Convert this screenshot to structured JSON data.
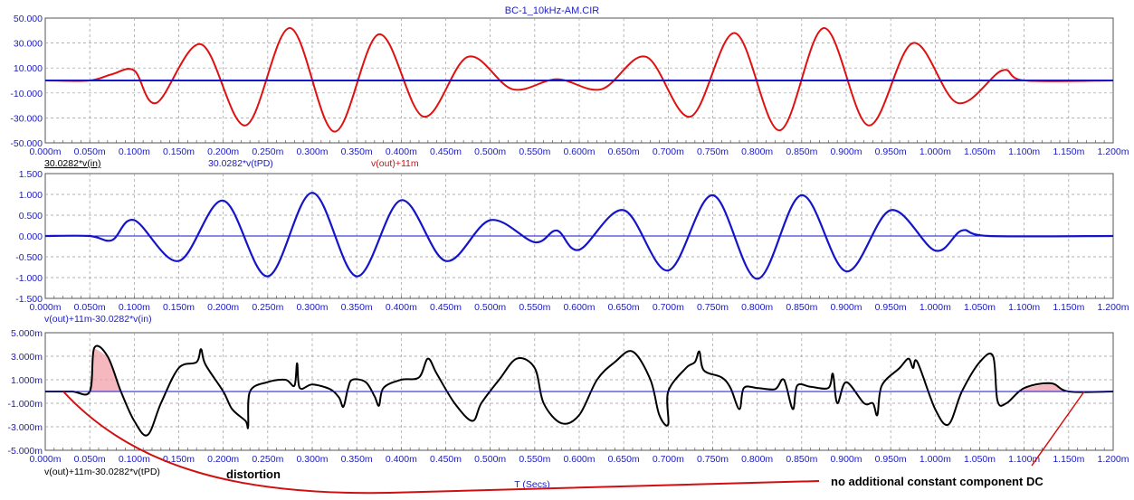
{
  "window": {
    "title": "BC-1_10kHz-AM.CIR"
  },
  "x_axis_label": "T (Secs)",
  "colors": {
    "red": "#e01010",
    "blue": "#1414c8",
    "black": "#000000",
    "pink": "#f0a0a8",
    "grid": "#999999",
    "text": "#1b1bc0"
  },
  "chart_data": [
    {
      "type": "line",
      "xlim": [
        0,
        1.2
      ],
      "ylim": [
        -50,
        50
      ],
      "x_tick_labels": [
        "0.000m",
        "0.050m",
        "0.100m",
        "0.150m",
        "0.200m",
        "0.250m",
        "0.300m",
        "0.350m",
        "0.400m",
        "0.450m",
        "0.500m",
        "0.550m",
        "0.600m",
        "0.650m",
        "0.700m",
        "0.750m",
        "0.800m",
        "0.850m",
        "0.900m",
        "0.950m",
        "1.000m",
        "1.050m",
        "1.100m",
        "1.150m",
        "1.200m"
      ],
      "y_tick_labels": [
        "50.000",
        "30.000",
        "10.000",
        "-10.000",
        "-30.000",
        "-50.000"
      ],
      "legend": [
        "30.0282*v(in)",
        "30.0282*v(tPD)",
        "v(out)+11m"
      ],
      "series": [
        {
          "name": "v(out)+11m",
          "color": "red",
          "points": [
            [
              0,
              0
            ],
            [
              0.05,
              0
            ],
            [
              0.075,
              5
            ],
            [
              0.1,
              8
            ],
            [
              0.125,
              -18
            ],
            [
              0.175,
              29
            ],
            [
              0.225,
              -36
            ],
            [
              0.275,
              42
            ],
            [
              0.325,
              -41
            ],
            [
              0.375,
              37
            ],
            [
              0.425,
              -29
            ],
            [
              0.475,
              19
            ],
            [
              0.525,
              -7
            ],
            [
              0.575,
              1
            ],
            [
              0.625,
              -7
            ],
            [
              0.675,
              19
            ],
            [
              0.725,
              -29
            ],
            [
              0.775,
              38
            ],
            [
              0.825,
              -40
            ],
            [
              0.875,
              42
            ],
            [
              0.925,
              -36
            ],
            [
              0.975,
              30
            ],
            [
              1.025,
              -18
            ],
            [
              1.075,
              8
            ],
            [
              1.1,
              0
            ],
            [
              1.2,
              0
            ]
          ]
        },
        {
          "name": "30.0282*v(tPD)",
          "color": "blue",
          "points": [
            [
              0,
              0
            ],
            [
              1.2,
              0
            ]
          ]
        }
      ]
    },
    {
      "type": "line",
      "xlim": [
        0,
        1.2
      ],
      "ylim": [
        -1.5,
        1.5
      ],
      "x_tick_labels": [
        "0.000m",
        "0.050m",
        "0.100m",
        "0.150m",
        "0.200m",
        "0.250m",
        "0.300m",
        "0.350m",
        "0.400m",
        "0.450m",
        "0.500m",
        "0.550m",
        "0.600m",
        "0.650m",
        "0.700m",
        "0.750m",
        "0.800m",
        "0.850m",
        "0.900m",
        "0.950m",
        "1.000m",
        "1.050m",
        "1.100m",
        "1.150m",
        "1.200m"
      ],
      "y_tick_labels": [
        "1.500",
        "1.000",
        "0.500",
        "0.000",
        "-0.500",
        "-1.000",
        "-1.500"
      ],
      "legend": [
        "v(out)+11m-30.0282*v(in)"
      ],
      "series": [
        {
          "name": "v(out)+11m-30.0282*v(in)",
          "color": "blue",
          "points": [
            [
              0,
              0
            ],
            [
              0.05,
              0
            ],
            [
              0.075,
              -0.1
            ],
            [
              0.1,
              0.38
            ],
            [
              0.15,
              -0.6
            ],
            [
              0.2,
              0.85
            ],
            [
              0.25,
              -0.97
            ],
            [
              0.3,
              1.04
            ],
            [
              0.35,
              -0.97
            ],
            [
              0.4,
              0.86
            ],
            [
              0.45,
              -0.6
            ],
            [
              0.5,
              0.38
            ],
            [
              0.55,
              -0.15
            ],
            [
              0.575,
              0.13
            ],
            [
              0.6,
              -0.33
            ],
            [
              0.65,
              0.62
            ],
            [
              0.7,
              -0.83
            ],
            [
              0.75,
              0.98
            ],
            [
              0.8,
              -1.03
            ],
            [
              0.85,
              0.98
            ],
            [
              0.9,
              -0.85
            ],
            [
              0.95,
              0.62
            ],
            [
              1.0,
              -0.35
            ],
            [
              1.03,
              0.13
            ],
            [
              1.06,
              0
            ],
            [
              1.2,
              0
            ]
          ]
        }
      ]
    },
    {
      "type": "line",
      "xlim": [
        0,
        1.2
      ],
      "ylim": [
        -5,
        5
      ],
      "x_tick_labels": [
        "0.000m",
        "0.050m",
        "0.100m",
        "0.150m",
        "0.200m",
        "0.250m",
        "0.300m",
        "0.350m",
        "0.400m",
        "0.450m",
        "0.500m",
        "0.550m",
        "0.600m",
        "0.650m",
        "0.700m",
        "0.750m",
        "0.800m",
        "0.850m",
        "0.900m",
        "0.950m",
        "1.000m",
        "1.050m",
        "1.100m",
        "1.150m",
        "1.200m"
      ],
      "y_tick_labels": [
        "5.000m",
        "3.000m",
        "1.000m",
        "-1.000m",
        "-3.000m",
        "-5.000m"
      ],
      "legend": [
        "v(out)+11m-30.0282*v(tPD)"
      ],
      "series": [
        {
          "name": "v(out)+11m-30.0282*v(tPD)",
          "color": "black",
          "points": [
            [
              0,
              0
            ],
            [
              0.03,
              0
            ],
            [
              0.05,
              0
            ],
            [
              0.055,
              3.7
            ],
            [
              0.07,
              3
            ],
            [
              0.085,
              0
            ],
            [
              0.1,
              -2.5
            ],
            [
              0.115,
              -3.7
            ],
            [
              0.13,
              -1
            ],
            [
              0.15,
              2
            ],
            [
              0.17,
              2.5
            ],
            [
              0.175,
              3.6
            ],
            [
              0.18,
              2.3
            ],
            [
              0.2,
              0
            ],
            [
              0.21,
              -1.5
            ],
            [
              0.225,
              -2.5
            ],
            [
              0.228,
              -3
            ],
            [
              0.23,
              0
            ],
            [
              0.25,
              0.8
            ],
            [
              0.27,
              1
            ],
            [
              0.28,
              0.5
            ],
            [
              0.283,
              2.4
            ],
            [
              0.286,
              0.3
            ],
            [
              0.3,
              0.6
            ],
            [
              0.32,
              0.2
            ],
            [
              0.33,
              -0.5
            ],
            [
              0.335,
              -1.3
            ],
            [
              0.34,
              0.2
            ],
            [
              0.345,
              1
            ],
            [
              0.36,
              0.8
            ],
            [
              0.37,
              -0.4
            ],
            [
              0.375,
              -1.2
            ],
            [
              0.38,
              0.3
            ],
            [
              0.4,
              1
            ],
            [
              0.42,
              1.2
            ],
            [
              0.43,
              2.8
            ],
            [
              0.44,
              1.5
            ],
            [
              0.46,
              -1
            ],
            [
              0.48,
              -2.5
            ],
            [
              0.49,
              -1
            ],
            [
              0.51,
              1
            ],
            [
              0.53,
              2.8
            ],
            [
              0.55,
              2
            ],
            [
              0.56,
              -1
            ],
            [
              0.58,
              -2.7
            ],
            [
              0.6,
              -2
            ],
            [
              0.62,
              1
            ],
            [
              0.64,
              2.5
            ],
            [
              0.66,
              3.4
            ],
            [
              0.68,
              1
            ],
            [
              0.69,
              -2
            ],
            [
              0.7,
              -2.8
            ],
            [
              0.7,
              0
            ],
            [
              0.72,
              2
            ],
            [
              0.73,
              2.5
            ],
            [
              0.735,
              3.4
            ],
            [
              0.74,
              1.8
            ],
            [
              0.76,
              1.2
            ],
            [
              0.77,
              0.3
            ],
            [
              0.78,
              -1.5
            ],
            [
              0.785,
              0.3
            ],
            [
              0.8,
              0.3
            ],
            [
              0.82,
              0.2
            ],
            [
              0.83,
              1
            ],
            [
              0.84,
              -1.5
            ],
            [
              0.845,
              0.5
            ],
            [
              0.86,
              0.4
            ],
            [
              0.88,
              0.3
            ],
            [
              0.885,
              1.5
            ],
            [
              0.89,
              -1
            ],
            [
              0.9,
              0.8
            ],
            [
              0.92,
              -1
            ],
            [
              0.93,
              -1
            ],
            [
              0.935,
              -2
            ],
            [
              0.94,
              0.5
            ],
            [
              0.96,
              2
            ],
            [
              0.97,
              2.8
            ],
            [
              0.975,
              2
            ],
            [
              0.98,
              2.5
            ],
            [
              1.0,
              -1.5
            ],
            [
              1.015,
              -2.8
            ],
            [
              1.03,
              0
            ],
            [
              1.05,
              2.5
            ],
            [
              1.065,
              3
            ],
            [
              1.07,
              -0.8
            ],
            [
              1.08,
              -1
            ],
            [
              1.1,
              0.3
            ],
            [
              1.13,
              0.7
            ],
            [
              1.15,
              0
            ],
            [
              1.2,
              0
            ]
          ]
        }
      ]
    }
  ],
  "annotations": {
    "distortion": "distortion",
    "no_dc": "no additional constant component DC"
  }
}
